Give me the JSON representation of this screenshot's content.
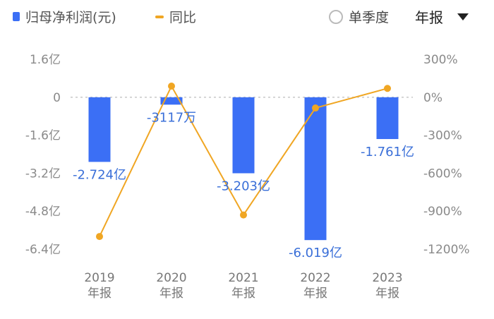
{
  "legend": {
    "bar_label": "归母净利润(元)",
    "line_label": "同比"
  },
  "controls": {
    "quarter_label": "单季度",
    "period_label": "年报"
  },
  "colors": {
    "bar": "#3b6ff5",
    "line": "#f0a623",
    "grid": "#c8c8c8"
  },
  "chart_data": {
    "type": "bar",
    "categories": [
      "2019\n年报",
      "2020\n年报",
      "2021\n年报",
      "2022\n年报",
      "2023\n年报"
    ],
    "series": [
      {
        "name": "归母净利润(元)",
        "type": "bar",
        "axis": "left",
        "values": [
          -272400000,
          -31170000,
          -320300000,
          -601900000,
          -176100000
        ],
        "labels": [
          "-2.724亿",
          "-3117万",
          "-3.203亿",
          "-6.019亿",
          "-1.761亿"
        ]
      },
      {
        "name": "同比",
        "type": "line",
        "axis": "right",
        "values": [
          -1100,
          88,
          -930,
          -85,
          70
        ]
      }
    ],
    "left_axis": {
      "ticks": [
        160000000,
        0,
        -160000000,
        -320000000,
        -480000000,
        -640000000
      ],
      "tick_labels": [
        "1.6亿",
        "0",
        "-1.6亿",
        "-3.2亿",
        "-4.8亿",
        "-6.4亿"
      ],
      "ylim": [
        -640000000,
        160000000
      ]
    },
    "right_axis": {
      "ticks": [
        300,
        0,
        -300,
        -600,
        -900,
        -1200
      ],
      "tick_labels": [
        "300%",
        "0%",
        "-300%",
        "-600%",
        "-900%",
        "-1200%"
      ],
      "ylim": [
        -1200,
        300
      ]
    },
    "grid": "dashed zero line"
  }
}
